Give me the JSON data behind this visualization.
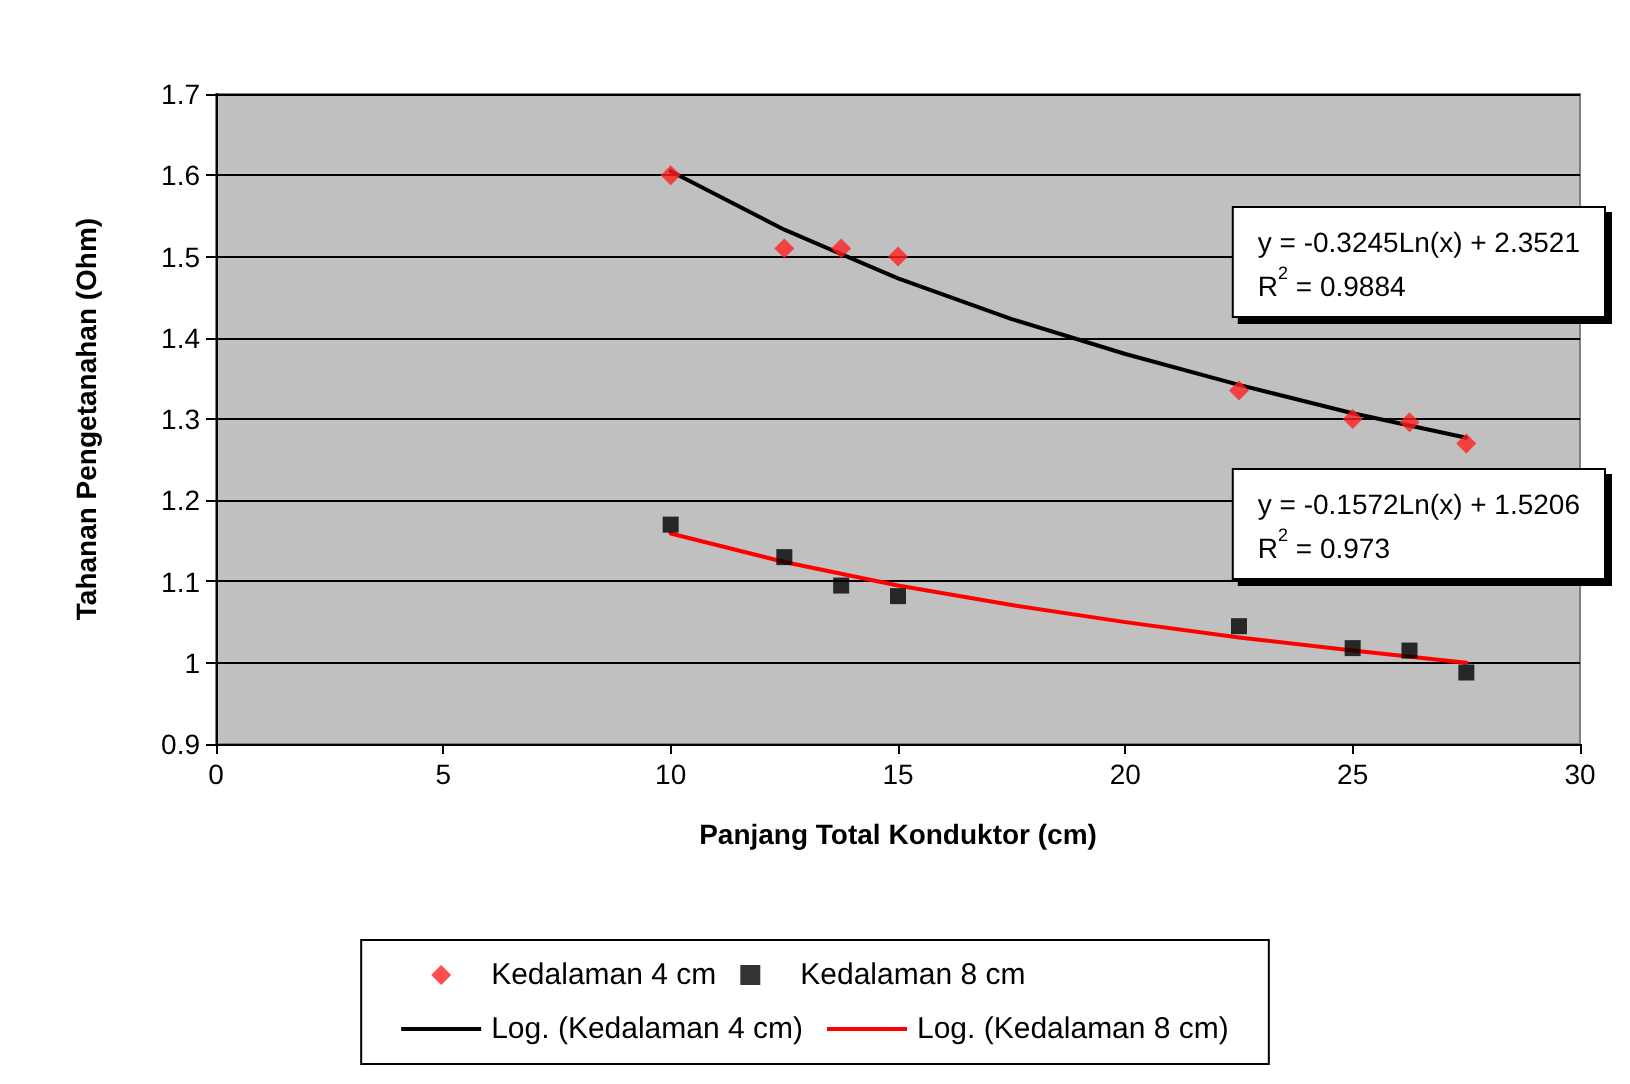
{
  "chart_data": {
    "type": "scatter",
    "xlabel": "Panjang Total Konduktor (cm)",
    "ylabel": "Tahanan Pengetanahan (Ohm)",
    "xlim": [
      0,
      30
    ],
    "xticks": [
      0,
      5,
      10,
      15,
      20,
      25,
      30
    ],
    "ylim": [
      0.9,
      1.7
    ],
    "yticks": [
      0.9,
      1,
      1.1,
      1.2,
      1.3,
      1.4,
      1.5,
      1.6,
      1.7
    ],
    "grid": "y",
    "legend": "bottom",
    "x": [
      10,
      12.5,
      13.75,
      15,
      22.5,
      25,
      26.25,
      27.5
    ],
    "series": [
      {
        "name": "Kedalaman 4 cm",
        "marker": "diamond",
        "color": "#ff2020",
        "values": [
          1.6,
          1.51,
          1.51,
          1.5,
          1.335,
          1.3,
          1.296,
          1.27
        ]
      },
      {
        "name": "Kedalaman 8 cm",
        "marker": "square",
        "color": "#000000",
        "values": [
          1.17,
          1.13,
          1.095,
          1.082,
          1.045,
          1.018,
          1.015,
          0.988
        ]
      },
      {
        "name": "Log. (Kedalaman 4 cm)",
        "type": "line",
        "marker": "none",
        "color": "#000000",
        "x": [
          10,
          12.5,
          15,
          17.5,
          20,
          22.5,
          25,
          27.5
        ],
        "values": [
          1.605,
          1.533,
          1.473,
          1.423,
          1.38,
          1.342,
          1.307,
          1.277
        ]
      },
      {
        "name": "Log. (Kedalaman 8 cm)",
        "type": "line",
        "marker": "none",
        "color": "#ff0000",
        "x": [
          10,
          12.5,
          15,
          17.5,
          20,
          22.5,
          25,
          27.5
        ],
        "values": [
          1.159,
          1.124,
          1.095,
          1.071,
          1.05,
          1.031,
          1.015,
          1.0
        ]
      }
    ],
    "annotations": [
      "y = -0.3245Ln(x) + 2.3521\nR$^{2}$ = 0.9884",
      "y = -0.1572Ln(x) + 1.5206\nR$^{2}$ = 0.973"
    ]
  }
}
